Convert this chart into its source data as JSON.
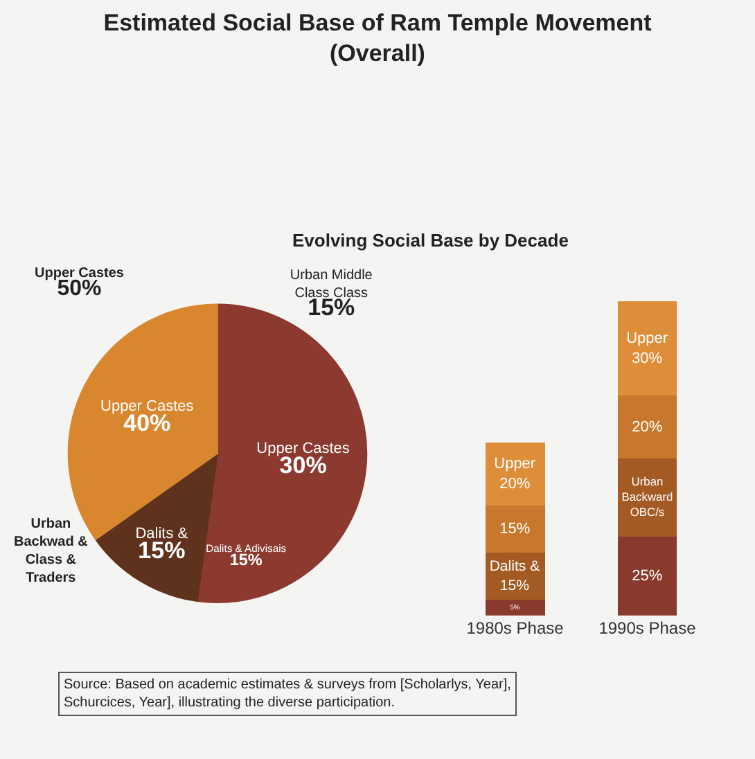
{
  "chart_data": [
    {
      "type": "pie",
      "title": "Estimated Social Base of Ram Temple Movement\n(Overall)",
      "categories": [
        "Urban Middle\nClass Class",
        "Upper Castes",
        "Dalits & Adivisais",
        "Dalits &",
        "Upper Castes"
      ],
      "values": [
        15,
        30,
        15,
        15,
        40
      ],
      "value_labels": [
        "15%",
        "30%",
        "15%",
        "15%",
        "40%"
      ],
      "colors": [
        "#8c3a2f",
        "#8c3a2f",
        "#8c3a2f",
        "#5e321c",
        "#d9872e"
      ],
      "annotations": [
        "Upper Castes\n50%",
        "Urban\nBackwad &\nClass &\nTraders",
        "Source: Based on academic estimates & surveys from [Scholarlys, Year],\nSchurcices, Year], illustrating the diverse participation."
      ]
    },
    {
      "type": "bar",
      "stacked": true,
      "title": "Evolving Social Base by Decade",
      "categories": [
        "1980s Phase",
        "1990s Phase"
      ],
      "series": [
        {
          "color": "#8a3a2c",
          "values": [
            5,
            25
          ],
          "value_labels": [
            "5%",
            "25%"
          ]
        },
        {
          "color": "#a45a23",
          "values": [
            15,
            25
          ],
          "value_labels": [
            "Dalits &\n15%",
            "Urban\nBackward\nOBC/s"
          ]
        },
        {
          "color": "#c8782c",
          "values": [
            15,
            20
          ],
          "value_labels": [
            "15%",
            "20%"
          ]
        },
        {
          "color": "#de8e38",
          "values": [
            20,
            30
          ],
          "value_labels": [
            "Upper\n20%",
            "Upper\n30%"
          ]
        }
      ],
      "tick_labels": "x",
      "grid": false
    }
  ]
}
